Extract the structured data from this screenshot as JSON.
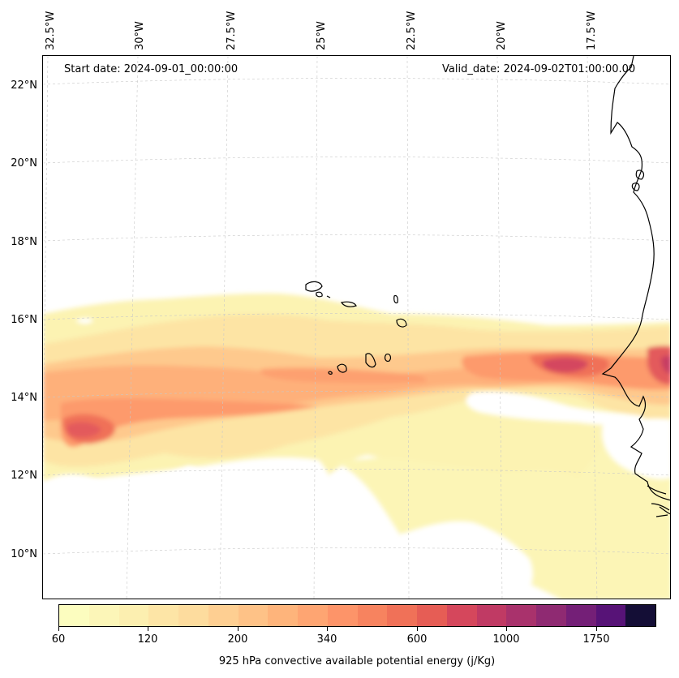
{
  "annotations": {
    "start_date": "Start date: 2024-09-01_00:00:00",
    "valid_date": "Valid_date: 2024-09-02T01:00:00.00"
  },
  "longitude_labels": [
    "32.5°W",
    "30°W",
    "27.5°W",
    "25°W",
    "22.5°W",
    "20°W",
    "17.5°W"
  ],
  "latitude_labels": [
    "22°N",
    "20°N",
    "18°N",
    "16°N",
    "14°N",
    "12°N",
    "10°N"
  ],
  "colorbar": {
    "title": "925 hPa convective available potential energy (j/Kg)",
    "tick_labels": [
      "60",
      "120",
      "200",
      "340",
      "600",
      "1000",
      "1750"
    ],
    "colors": [
      "#fcfdbf",
      "#fcf6b8",
      "#fcefb0",
      "#fde5a6",
      "#fddc9e",
      "#fecf92",
      "#fec287",
      "#feb47b",
      "#fea572",
      "#fd9469",
      "#f7835f",
      "#f07158",
      "#e65d55",
      "#d5475c",
      "#c03a64",
      "#a9326c",
      "#8f2a72",
      "#741f77",
      "#571377",
      "#140e36"
    ]
  },
  "chart_data": {
    "type": "heatmap",
    "title": "",
    "variable": "925 hPa convective available potential energy (j/Kg)",
    "lon_range": [
      -33.0,
      -16.2
    ],
    "lat_range": [
      8.9,
      22.8
    ],
    "color_levels": [
      60,
      80,
      100,
      120,
      150,
      175,
      200,
      250,
      300,
      340,
      400,
      500,
      600,
      750,
      900,
      1000,
      1250,
      1500,
      1750,
      2000
    ],
    "regions": [
      {
        "name": "broad CAPE band",
        "lon": [
          -33.0,
          -16.2
        ],
        "lat": [
          10.5,
          16.2
        ],
        "cape_approx": 100
      },
      {
        "name": "main band core",
        "lon": [
          -33.0,
          -16.2
        ],
        "lat": [
          13.0,
          15.8
        ],
        "cape_approx": 300
      },
      {
        "name": "maximum west",
        "lon": [
          -32.0,
          -31.0
        ],
        "lat": [
          12.8,
          13.5
        ],
        "cape_approx": 900
      },
      {
        "name": "maximum near Senegal coast",
        "lon": [
          -19.6,
          -17.3
        ],
        "lat": [
          14.5,
          15.3
        ],
        "cape_approx": 900
      },
      {
        "name": "maximum east edge",
        "lon": [
          -16.5,
          -16.2
        ],
        "lat": [
          14.5,
          15.2
        ],
        "cape_approx": 1000
      }
    ]
  }
}
